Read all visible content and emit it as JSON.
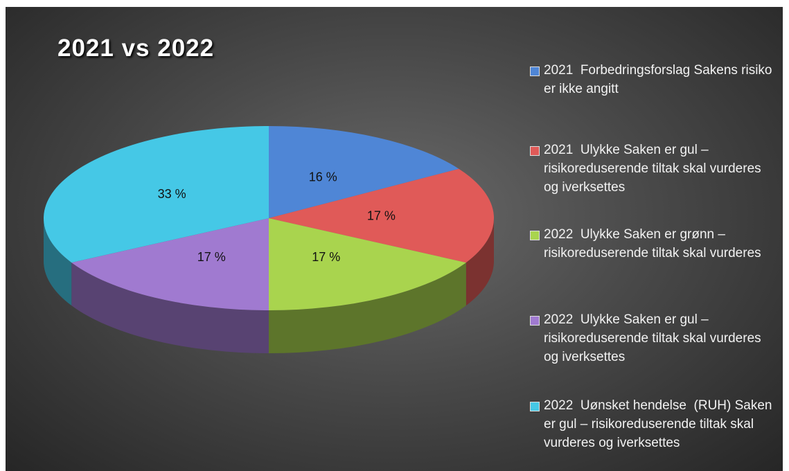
{
  "chart_data": {
    "type": "pie",
    "title": "2021 vs 2022",
    "categories": [
      "2021  Forbedringsforslag Sakens risiko er ikke angitt",
      "2021  Ulykke Saken er gul – risikoreduserende tiltak skal vurderes og iverksettes",
      "2022  Ulykke Saken er grønn – risikoreduserende tiltak skal vurderes",
      "2022  Ulykke Saken er gul – risikoreduserende tiltak skal vurderes og iverksettes",
      "2022  Uønsket hendelse  (RUH) Saken er gul – risikoreduserende tiltak skal vurderes og iverksettes"
    ],
    "values": [
      16,
      17,
      17,
      17,
      33
    ],
    "value_labels": [
      "16 %",
      "17 %",
      "17 %",
      "17 %",
      "33 %"
    ],
    "colors": [
      "#4f86d6",
      "#e05a58",
      "#a9d44e",
      "#a07ad0",
      "#45c8e6"
    ],
    "legend": "right"
  }
}
